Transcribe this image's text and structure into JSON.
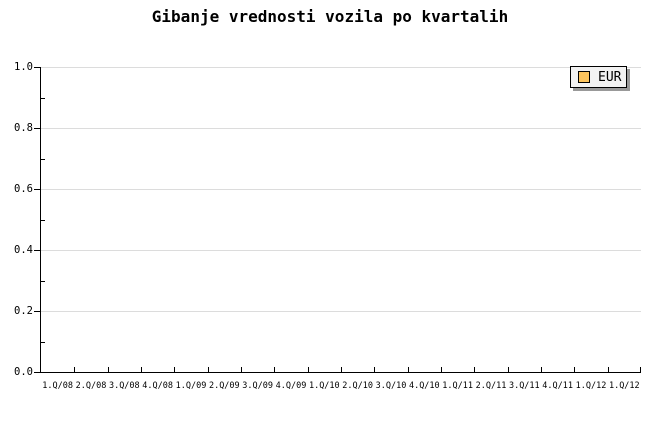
{
  "chart": {
    "title": "Gibanje vrednosti vozila po kvartalih"
  },
  "legend": {
    "position": "top-right",
    "items": [
      {
        "label": "EUR",
        "swatch_color": "#FDC55E"
      }
    ]
  },
  "chart_data": {
    "type": "line",
    "title": "Gibanje vrednosti vozila po kvartalih",
    "x_categories": [
      "1.Q/08",
      "2.Q/08",
      "3.Q/08",
      "4.Q/08",
      "1.Q/09",
      "2.Q/09",
      "3.Q/09",
      "4.Q/09",
      "1.Q/10",
      "2.Q/10",
      "3.Q/10",
      "4.Q/10",
      "1.Q/11",
      "2.Q/11",
      "3.Q/11",
      "4.Q/11",
      "1.Q/12",
      "1.Q/12"
    ],
    "y_tick_labels": [
      "1.0",
      "0.8",
      "0.6",
      "0.4",
      "0.2",
      "0.0"
    ],
    "ylim": [
      0.0,
      1.0
    ],
    "y_major_step": 0.2,
    "y_minor_step": 0.1,
    "grid": "horizontal-major",
    "legend_position": "top-right",
    "series": [
      {
        "name": "EUR",
        "color": "#FDC55E",
        "values": []
      }
    ]
  },
  "colors": {
    "background": "#FFFFFF",
    "axis": "#000000",
    "grid": "#DCDCDC",
    "text": "#000000",
    "legend_background": "#F2F2F2",
    "legend_border": "#000000",
    "legend_shadow": "#999999",
    "series_eur": "#FDC55E"
  }
}
